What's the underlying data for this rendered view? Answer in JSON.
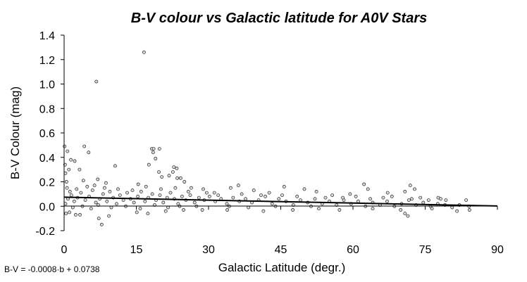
{
  "chart_data": {
    "type": "scatter",
    "title": "B-V colour vs Galactic latitude for A0V Stars",
    "xlabel": "Galactic Latitude (degr.)",
    "ylabel": "B-V Colour (mag)",
    "xlim": [
      0,
      90
    ],
    "ylim": [
      -0.2,
      1.4
    ],
    "xticks": [
      "0",
      "15",
      "30",
      "45",
      "60",
      "75",
      "90"
    ],
    "yticks": [
      "-0.2",
      "0.0",
      "0.2",
      "0.4",
      "0.6",
      "0.8",
      "1.0",
      "1.2",
      "1.4"
    ],
    "grid": false,
    "legend": "none",
    "trendline": {
      "equation_text": "B-V = -0.0008·b + 0.0738",
      "slope": -0.0008,
      "intercept": 0.0738
    },
    "points": [
      [
        0.1,
        0.49
      ],
      [
        0.2,
        0.34
      ],
      [
        0.3,
        0.27
      ],
      [
        0.5,
        0.2
      ],
      [
        0.7,
        0.45
      ],
      [
        1.0,
        0.3
      ],
      [
        1.4,
        0.38
      ],
      [
        2.2,
        0.37
      ],
      [
        3.2,
        0.3
      ],
      [
        4.2,
        0.49
      ],
      [
        5.1,
        0.44
      ],
      [
        4.0,
        0.21
      ],
      [
        6.7,
        1.02
      ],
      [
        16.6,
        1.26
      ],
      [
        7.0,
        0.22
      ],
      [
        8.7,
        0.19
      ],
      [
        10.6,
        0.33
      ],
      [
        15.4,
        0.18
      ],
      [
        17.6,
        0.34
      ],
      [
        18.2,
        0.47
      ],
      [
        18.5,
        0.44
      ],
      [
        18.6,
        0.47
      ],
      [
        19.0,
        0.39
      ],
      [
        19.8,
        0.47
      ],
      [
        19.7,
        0.28
      ],
      [
        20.3,
        0.24
      ],
      [
        21.8,
        0.25
      ],
      [
        22.6,
        0.28
      ],
      [
        22.8,
        0.32
      ],
      [
        23.4,
        0.31
      ],
      [
        23.5,
        0.23
      ],
      [
        24.2,
        0.23
      ],
      [
        25.0,
        0.2
      ],
      [
        26.4,
        0.15
      ],
      [
        28.9,
        0.14
      ],
      [
        31.2,
        0.11
      ],
      [
        34.6,
        0.15
      ],
      [
        36.2,
        0.17
      ],
      [
        39.4,
        0.13
      ],
      [
        42.6,
        0.11
      ],
      [
        45.7,
        0.16
      ],
      [
        49.9,
        0.14
      ],
      [
        52.4,
        0.12
      ],
      [
        55.7,
        0.09
      ],
      [
        59.4,
        0.1
      ],
      [
        62.3,
        0.18
      ],
      [
        63.1,
        0.14
      ],
      [
        67.2,
        0.11
      ],
      [
        70.8,
        0.12
      ],
      [
        71.9,
        0.17
      ],
      [
        72.8,
        0.14
      ],
      [
        77.7,
        0.07
      ],
      [
        79.3,
        0.05
      ],
      [
        83.5,
        0.05
      ],
      [
        7.8,
        -0.15
      ],
      [
        7.2,
        -0.1
      ],
      [
        9.3,
        -0.08
      ],
      [
        3.3,
        -0.07
      ],
      [
        2.4,
        -0.07
      ],
      [
        0.4,
        -0.06
      ],
      [
        1.1,
        -0.05
      ],
      [
        15.1,
        -0.05
      ],
      [
        17.4,
        -0.06
      ],
      [
        21.1,
        -0.04
      ],
      [
        24.8,
        -0.03
      ],
      [
        28.7,
        -0.03
      ],
      [
        33.9,
        -0.03
      ],
      [
        41.4,
        -0.04
      ],
      [
        47.5,
        -0.03
      ],
      [
        52.9,
        -0.02
      ],
      [
        57.2,
        -0.03
      ],
      [
        64.1,
        -0.02
      ],
      [
        69.9,
        -0.03
      ],
      [
        70.8,
        -0.06
      ],
      [
        71.4,
        -0.08
      ],
      [
        76.4,
        -0.02
      ],
      [
        81.6,
        -0.04
      ],
      [
        84.2,
        -0.03
      ],
      [
        0.3,
        0.02
      ],
      [
        0.8,
        0.06
      ],
      [
        1.5,
        0.09
      ],
      [
        2.1,
        0.04
      ],
      [
        2.8,
        0.07
      ],
      [
        3.5,
        0.11
      ],
      [
        4.4,
        0.05
      ],
      [
        5.2,
        0.08
      ],
      [
        5.9,
        0.13
      ],
      [
        6.6,
        0.03
      ],
      [
        7.4,
        0.06
      ],
      [
        8.1,
        0.1
      ],
      [
        8.9,
        0.04
      ],
      [
        9.5,
        0.12
      ],
      [
        10.2,
        0.07
      ],
      [
        10.9,
        0.02
      ],
      [
        11.6,
        0.09
      ],
      [
        12.3,
        0.05
      ],
      [
        13.1,
        0.11
      ],
      [
        13.8,
        0.06
      ],
      [
        14.5,
        0.03
      ],
      [
        15.3,
        0.08
      ],
      [
        16.0,
        0.12
      ],
      [
        16.8,
        0.04
      ],
      [
        17.5,
        0.07
      ],
      [
        18.3,
        0.1
      ],
      [
        19.1,
        0.05
      ],
      [
        19.9,
        0.09
      ],
      [
        20.6,
        0.03
      ],
      [
        21.4,
        0.07
      ],
      [
        22.1,
        0.11
      ],
      [
        22.9,
        0.06
      ],
      [
        23.7,
        0.02
      ],
      [
        24.5,
        0.08
      ],
      [
        25.3,
        0.05
      ],
      [
        26.2,
        0.09
      ],
      [
        27.1,
        0.03
      ],
      [
        28.0,
        0.07
      ],
      [
        29.1,
        0.05
      ],
      [
        30.2,
        0.08
      ],
      [
        31.4,
        0.04
      ],
      [
        32.6,
        0.06
      ],
      [
        33.8,
        0.02
      ],
      [
        35.1,
        0.07
      ],
      [
        36.4,
        0.04
      ],
      [
        37.7,
        0.06
      ],
      [
        39.0,
        0.03
      ],
      [
        40.4,
        0.05
      ],
      [
        41.8,
        0.08
      ],
      [
        43.2,
        0.02
      ],
      [
        44.6,
        0.06
      ],
      [
        46.1,
        0.04
      ],
      [
        47.6,
        0.01
      ],
      [
        49.1,
        0.05
      ],
      [
        50.6,
        0.03
      ],
      [
        52.1,
        0.06
      ],
      [
        53.6,
        0.02
      ],
      [
        55.1,
        0.04
      ],
      [
        56.6,
        0.01
      ],
      [
        58.1,
        0.05
      ],
      [
        59.6,
        0.02
      ],
      [
        61.1,
        0.04
      ],
      [
        62.6,
        0.0
      ],
      [
        64.1,
        0.03
      ],
      [
        65.6,
        0.01
      ],
      [
        67.1,
        0.04
      ],
      [
        68.6,
        0.0
      ],
      [
        70.1,
        0.02
      ],
      [
        71.6,
        0.05
      ],
      [
        73.1,
        0.01
      ],
      [
        74.6,
        0.03
      ],
      [
        76.1,
        0.0
      ],
      [
        77.6,
        0.02
      ],
      [
        79.1,
        0.01
      ],
      [
        80.6,
        -0.01
      ],
      [
        82.1,
        0.01
      ],
      [
        84.1,
        0.0
      ],
      [
        0.6,
        0.15
      ],
      [
        1.2,
        0.12
      ],
      [
        1.8,
        -0.01
      ],
      [
        2.6,
        0.14
      ],
      [
        3.8,
        0.0
      ],
      [
        4.8,
        0.16
      ],
      [
        5.6,
        -0.02
      ],
      [
        6.3,
        0.17
      ],
      [
        7.1,
        0.01
      ],
      [
        8.4,
        0.15
      ],
      [
        9.8,
        -0.01
      ],
      [
        11.2,
        0.14
      ],
      [
        12.8,
        0.0
      ],
      [
        14.2,
        0.13
      ],
      [
        15.8,
        -0.02
      ],
      [
        17.0,
        0.16
      ],
      [
        18.8,
        0.01
      ],
      [
        20.1,
        0.14
      ],
      [
        21.6,
        -0.01
      ],
      [
        23.1,
        0.15
      ],
      [
        24.0,
        0.0
      ],
      [
        25.8,
        0.12
      ],
      [
        27.5,
        0.0
      ],
      [
        29.6,
        0.11
      ],
      [
        32.0,
        0.09
      ],
      [
        34.3,
        0.0
      ],
      [
        36.9,
        0.1
      ],
      [
        38.3,
        -0.01
      ],
      [
        40.9,
        0.09
      ],
      [
        43.9,
        0.0
      ],
      [
        45.3,
        0.09
      ],
      [
        48.4,
        0.08
      ],
      [
        51.3,
        0.0
      ],
      [
        54.3,
        0.07
      ],
      [
        57.9,
        0.07
      ],
      [
        60.6,
        0.08
      ],
      [
        63.6,
        0.06
      ],
      [
        66.3,
        0.07
      ],
      [
        68.1,
        0.08
      ],
      [
        72.2,
        0.06
      ],
      [
        74.0,
        0.07
      ],
      [
        75.7,
        0.05
      ],
      [
        78.2,
        0.06
      ]
    ]
  }
}
